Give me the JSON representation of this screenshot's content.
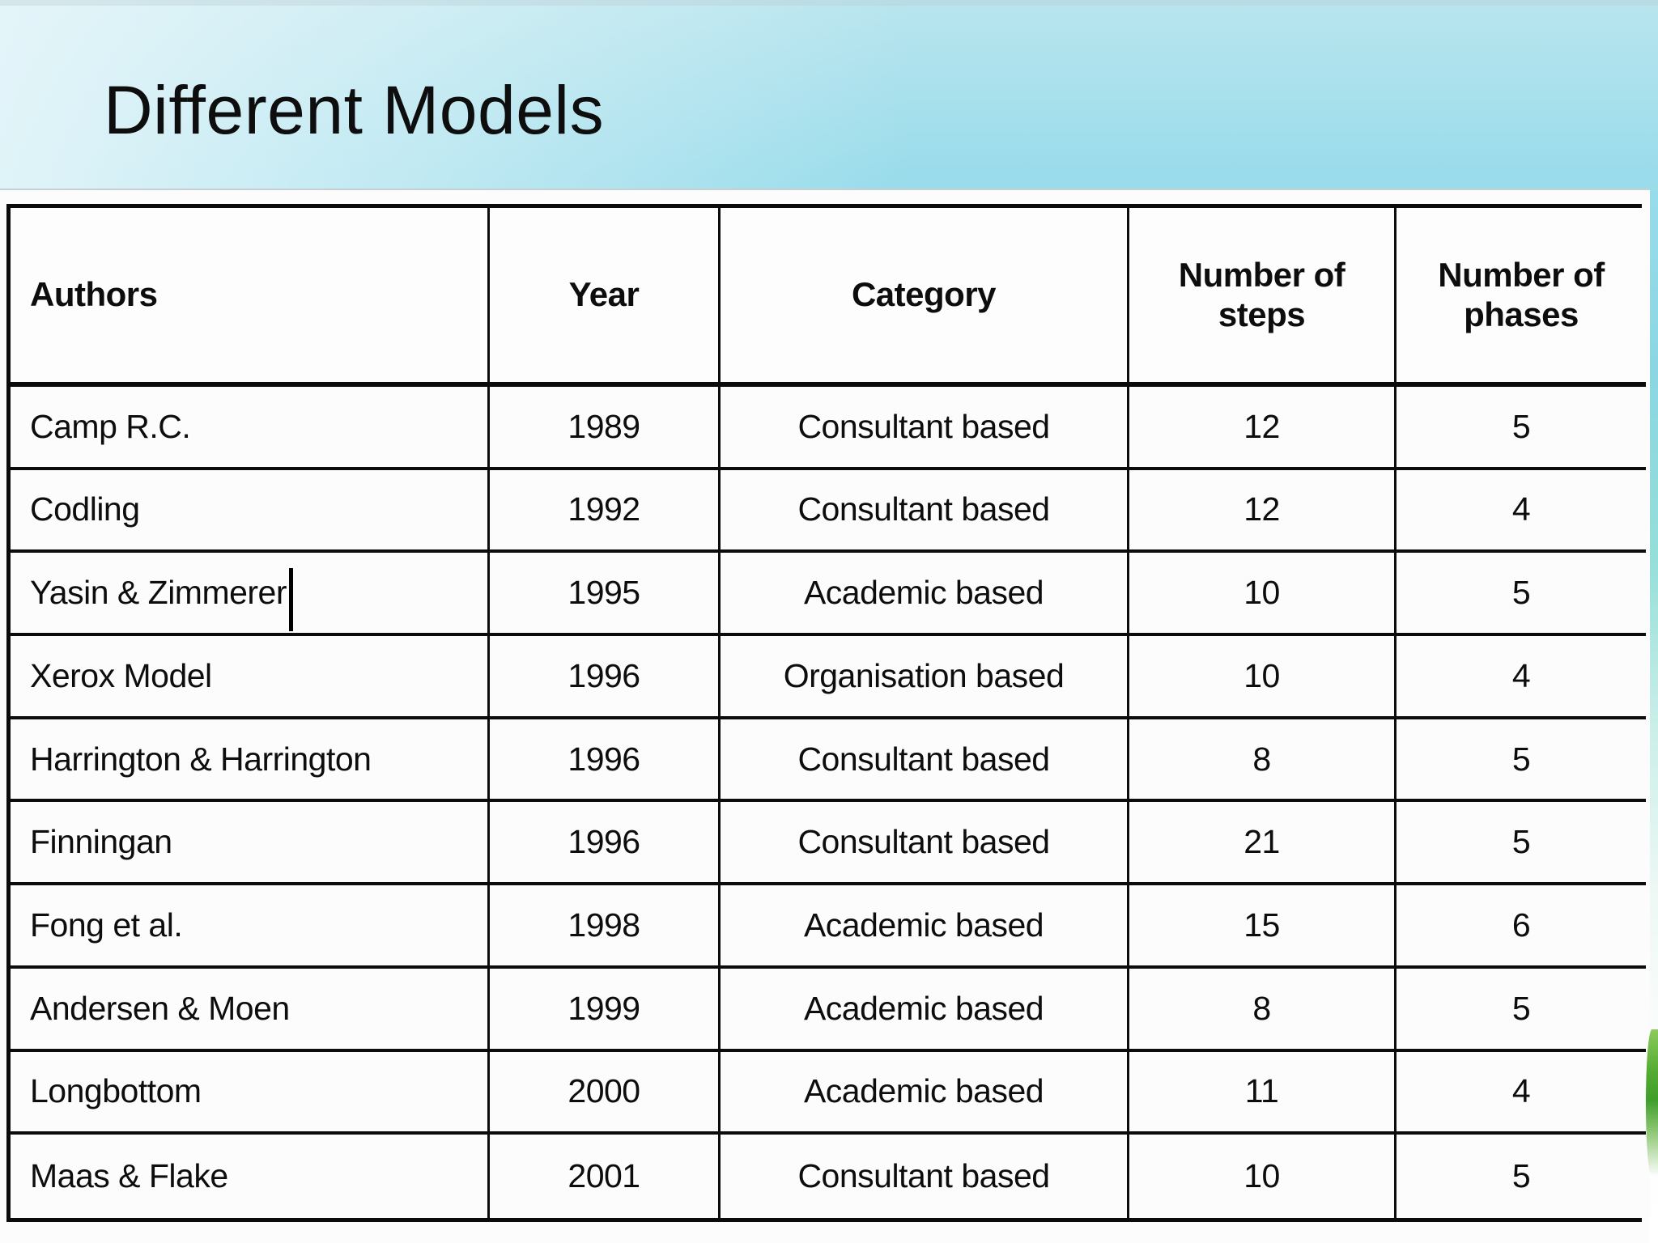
{
  "title": "Different Models",
  "table": {
    "headers": [
      "Authors",
      "Year",
      "Category",
      "Number of steps",
      "Number of phases"
    ],
    "rows": [
      {
        "author": "Camp R.C.",
        "year": "1989",
        "category": "Consultant based",
        "steps": "12",
        "phases": "5",
        "caret": false
      },
      {
        "author": "Codling",
        "year": "1992",
        "category": "Consultant based",
        "steps": "12",
        "phases": "4",
        "caret": false
      },
      {
        "author": "Yasin & Zimmerer",
        "year": "1995",
        "category": "Academic based",
        "steps": "10",
        "phases": "5",
        "caret": true
      },
      {
        "author": "Xerox Model",
        "year": "1996",
        "category": "Organisation based",
        "steps": "10",
        "phases": "4",
        "caret": false
      },
      {
        "author": "Harrington & Harrington",
        "year": "1996",
        "category": "Consultant based",
        "steps": "8",
        "phases": "5",
        "caret": false
      },
      {
        "author": "Finningan",
        "year": "1996",
        "category": "Consultant based",
        "steps": "21",
        "phases": "5",
        "caret": false
      },
      {
        "author": "Fong et al.",
        "year": "1998",
        "category": "Academic based",
        "steps": "15",
        "phases": "6",
        "caret": false
      },
      {
        "author": "Andersen & Moen",
        "year": "1999",
        "category": "Academic based",
        "steps": "8",
        "phases": "5",
        "caret": false
      },
      {
        "author": "Longbottom",
        "year": "2000",
        "category": "Academic based",
        "steps": "11",
        "phases": "4",
        "caret": false
      },
      {
        "author": "Maas & Flake",
        "year": "2001",
        "category": "Consultant based",
        "steps": "10",
        "phases": "5",
        "caret": false
      }
    ]
  },
  "colors": {
    "background_top_left": "#d9eff5",
    "background_accent_cyan": "#8bd6e2",
    "background_mint": "#95ded9",
    "table_border": "#0b0b0b",
    "table_cell_background": "#fcfcfc",
    "leaf_green": "#4da32e",
    "text": "#0d0d0d"
  }
}
